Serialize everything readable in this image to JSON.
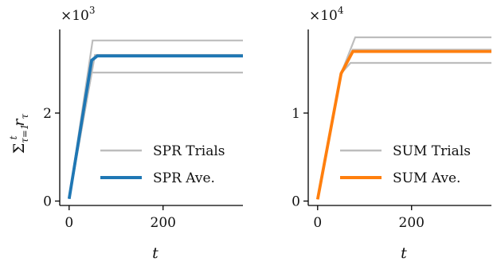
{
  "chart_data": [
    {
      "type": "line",
      "xlabel": "t",
      "ylabel": "Σ_{τ=1}^{t} r_τ",
      "ylabel_parts": {
        "sigma": "Σ",
        "sub": "τ=1",
        "sup": "t",
        "r": "r",
        "r_sub": "τ"
      },
      "y_multiplier": {
        "base": "×10",
        "exp": "3"
      },
      "xlim": [
        -20,
        370
      ],
      "ylim": [
        -0.1,
        3.9
      ],
      "x_ticks": [
        0,
        200
      ],
      "x_tick_labels": [
        "0",
        "200"
      ],
      "y_ticks": [
        0,
        2
      ],
      "y_tick_labels": [
        "0",
        "2"
      ],
      "grid": false,
      "legend": {
        "placement": "lower-right",
        "entries": [
          {
            "label": "SPR Trials",
            "color": "#bdbdbd"
          },
          {
            "label": "SPR Ave.",
            "color": "#1f77b4"
          }
        ]
      },
      "trials": [
        {
          "x": [
            0,
            50,
            370
          ],
          "y": [
            0.05,
            3.65,
            3.65
          ]
        },
        {
          "x": [
            0,
            55,
            370
          ],
          "y": [
            0.05,
            3.32,
            3.32
          ]
        },
        {
          "x": [
            0,
            48,
            370
          ],
          "y": [
            0.05,
            2.92,
            2.92
          ]
        }
      ],
      "average": {
        "x": [
          0,
          48,
          60,
          370
        ],
        "y": [
          0.05,
          3.2,
          3.3,
          3.3
        ],
        "color": "#1f77b4"
      }
    },
    {
      "type": "line",
      "xlabel": "t",
      "ylabel": "",
      "y_multiplier": {
        "base": "×10",
        "exp": "4"
      },
      "xlim": [
        -20,
        370
      ],
      "ylim": [
        -0.05,
        1.95
      ],
      "x_ticks": [
        0,
        200
      ],
      "x_tick_labels": [
        "0",
        "200"
      ],
      "y_ticks": [
        0,
        1
      ],
      "y_tick_labels": [
        "0",
        "1"
      ],
      "grid": false,
      "legend": {
        "placement": "lower-right",
        "entries": [
          {
            "label": "SUM Trials",
            "color": "#bdbdbd"
          },
          {
            "label": "SUM Ave.",
            "color": "#ff7f0e"
          }
        ]
      },
      "trials": [
        {
          "x": [
            0,
            50,
            80,
            370
          ],
          "y": [
            0.02,
            1.45,
            1.86,
            1.86
          ]
        },
        {
          "x": [
            0,
            50,
            75,
            370
          ],
          "y": [
            0.02,
            1.45,
            1.72,
            1.72
          ]
        },
        {
          "x": [
            0,
            50,
            70,
            370
          ],
          "y": [
            0.02,
            1.45,
            1.57,
            1.57
          ]
        }
      ],
      "average": {
        "x": [
          0,
          50,
          75,
          370
        ],
        "y": [
          0.02,
          1.45,
          1.7,
          1.7
        ],
        "color": "#ff7f0e"
      }
    }
  ]
}
